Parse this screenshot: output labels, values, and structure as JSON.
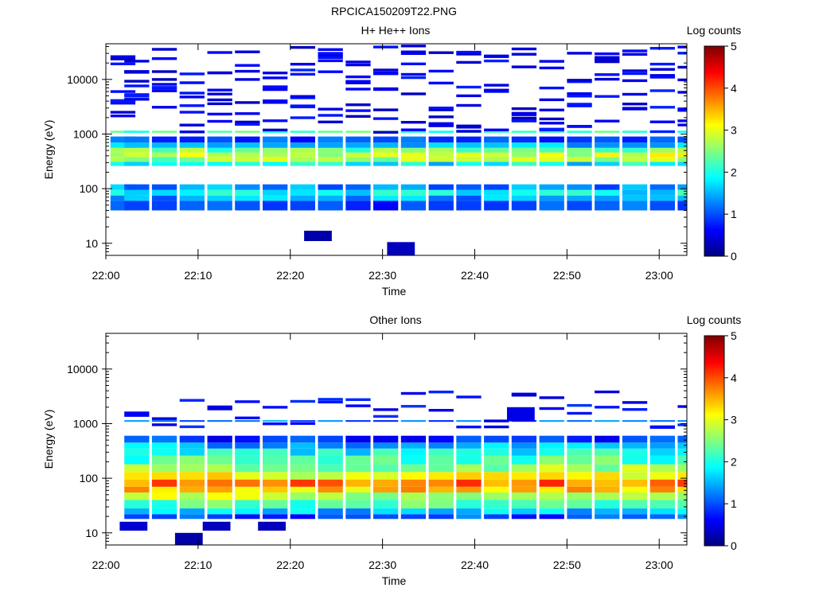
{
  "page_title": "RPCICA150209T22.PNG",
  "chart_data": [
    {
      "type": "heatmap",
      "title": "H+ He++ Ions",
      "xlabel": "Time",
      "ylabel": "Energy (eV)",
      "x_ticks": [
        "22:00",
        "22:10",
        "22:20",
        "22:30",
        "22:40",
        "22:50",
        "23:00"
      ],
      "x_range_minutes": [
        0,
        63
      ],
      "y_scale": "log",
      "y_ticks": [
        "10",
        "100",
        "1000",
        "10000"
      ],
      "y_range": [
        6,
        45000
      ],
      "colorbar": {
        "label": "Log counts",
        "range": [
          0,
          5
        ],
        "ticks": [
          "0",
          "1",
          "2",
          "3",
          "4",
          "5"
        ]
      },
      "columns_start_minutes": [
        0,
        1.5,
        4.5,
        7.5,
        10.5,
        13.5,
        16.5,
        19.5,
        22.5,
        25.5,
        28.5,
        31.5,
        34.5,
        37.5,
        40.5,
        43.5,
        46.5,
        49.5,
        52.5,
        55.5,
        58.5,
        61.5
      ],
      "column_widths_minutes": 3.2,
      "bands": [
        {
          "e_lo": 40,
          "e_hi": 60,
          "value": 1.0
        },
        {
          "e_lo": 60,
          "e_hi": 75,
          "value": 1.4
        },
        {
          "e_lo": 75,
          "e_hi": 95,
          "value": 1.9
        },
        {
          "e_lo": 95,
          "e_hi": 120,
          "value": 1.3
        },
        {
          "e_lo": 260,
          "e_hi": 310,
          "value": 1.8
        },
        {
          "e_lo": 310,
          "e_hi": 380,
          "value": 2.6
        },
        {
          "e_lo": 380,
          "e_hi": 460,
          "value": 2.9
        },
        {
          "e_lo": 460,
          "e_hi": 560,
          "value": 2.4
        },
        {
          "e_lo": 560,
          "e_hi": 700,
          "value": 1.6
        },
        {
          "e_lo": 700,
          "e_hi": 900,
          "value": 1.0
        },
        {
          "e_lo": 1050,
          "e_hi": 1150,
          "value": 2.2
        }
      ],
      "sparse_high_energy_value": 0.3,
      "isolated_blocks": [
        {
          "t0": 21.5,
          "t1": 24.5,
          "e_lo": 11,
          "e_hi": 17,
          "value": 0.2
        },
        {
          "t0": 30.5,
          "t1": 33.5,
          "e_lo": 6,
          "e_hi": 10.5,
          "value": 0.3
        }
      ]
    },
    {
      "type": "heatmap",
      "title": "Other Ions",
      "xlabel": "Time",
      "ylabel": "Energy (eV)",
      "x_ticks": [
        "22:00",
        "22:10",
        "22:20",
        "22:30",
        "22:40",
        "22:50",
        "23:00"
      ],
      "x_range_minutes": [
        0,
        63
      ],
      "y_scale": "log",
      "y_ticks": [
        "10",
        "100",
        "1000",
        "10000"
      ],
      "y_range": [
        6,
        45000
      ],
      "colorbar": {
        "label": "Log counts",
        "range": [
          0,
          5
        ],
        "ticks": [
          "0",
          "1",
          "2",
          "3",
          "4",
          "5"
        ]
      },
      "columns_start_minutes": [
        1.5,
        4.5,
        7.5,
        10.5,
        13.5,
        16.5,
        19.5,
        22.5,
        25.5,
        28.5,
        31.5,
        34.5,
        37.5,
        40.5,
        43.5,
        46.5,
        49.5,
        52.5,
        55.5,
        58.5,
        61.5
      ],
      "column_widths_minutes": 3.2,
      "bands": [
        {
          "e_lo": 18,
          "e_hi": 22,
          "value": 1.0
        },
        {
          "e_lo": 22,
          "e_hi": 28,
          "value": 1.6
        },
        {
          "e_lo": 28,
          "e_hi": 40,
          "value": 2.3
        },
        {
          "e_lo": 40,
          "e_hi": 55,
          "value": 2.8
        },
        {
          "e_lo": 55,
          "e_hi": 70,
          "value": 3.4
        },
        {
          "e_lo": 70,
          "e_hi": 95,
          "value": 3.8
        },
        {
          "e_lo": 95,
          "e_hi": 130,
          "value": 3.1
        },
        {
          "e_lo": 130,
          "e_hi": 180,
          "value": 2.6
        },
        {
          "e_lo": 180,
          "e_hi": 260,
          "value": 2.2
        },
        {
          "e_lo": 260,
          "e_hi": 350,
          "value": 1.9
        },
        {
          "e_lo": 350,
          "e_hi": 450,
          "value": 1.5
        },
        {
          "e_lo": 450,
          "e_hi": 600,
          "value": 0.9
        },
        {
          "e_lo": 1080,
          "e_hi": 1160,
          "value": 1.2
        }
      ],
      "sparse_high_energy_value": 0.4,
      "isolated_blocks": [
        {
          "t0": 1.5,
          "t1": 4.5,
          "e_lo": 11,
          "e_hi": 16,
          "value": 0.4
        },
        {
          "t0": 7.5,
          "t1": 10.5,
          "e_lo": 6,
          "e_hi": 10,
          "value": 0.2
        },
        {
          "t0": 10.5,
          "t1": 13.5,
          "e_lo": 11,
          "e_hi": 16,
          "value": 0.3
        },
        {
          "t0": 16.5,
          "t1": 19.5,
          "e_lo": 11,
          "e_hi": 16,
          "value": 0.3
        },
        {
          "t0": 43.5,
          "t1": 46.5,
          "e_lo": 1100,
          "e_hi": 2000,
          "value": 0.5
        }
      ]
    }
  ]
}
